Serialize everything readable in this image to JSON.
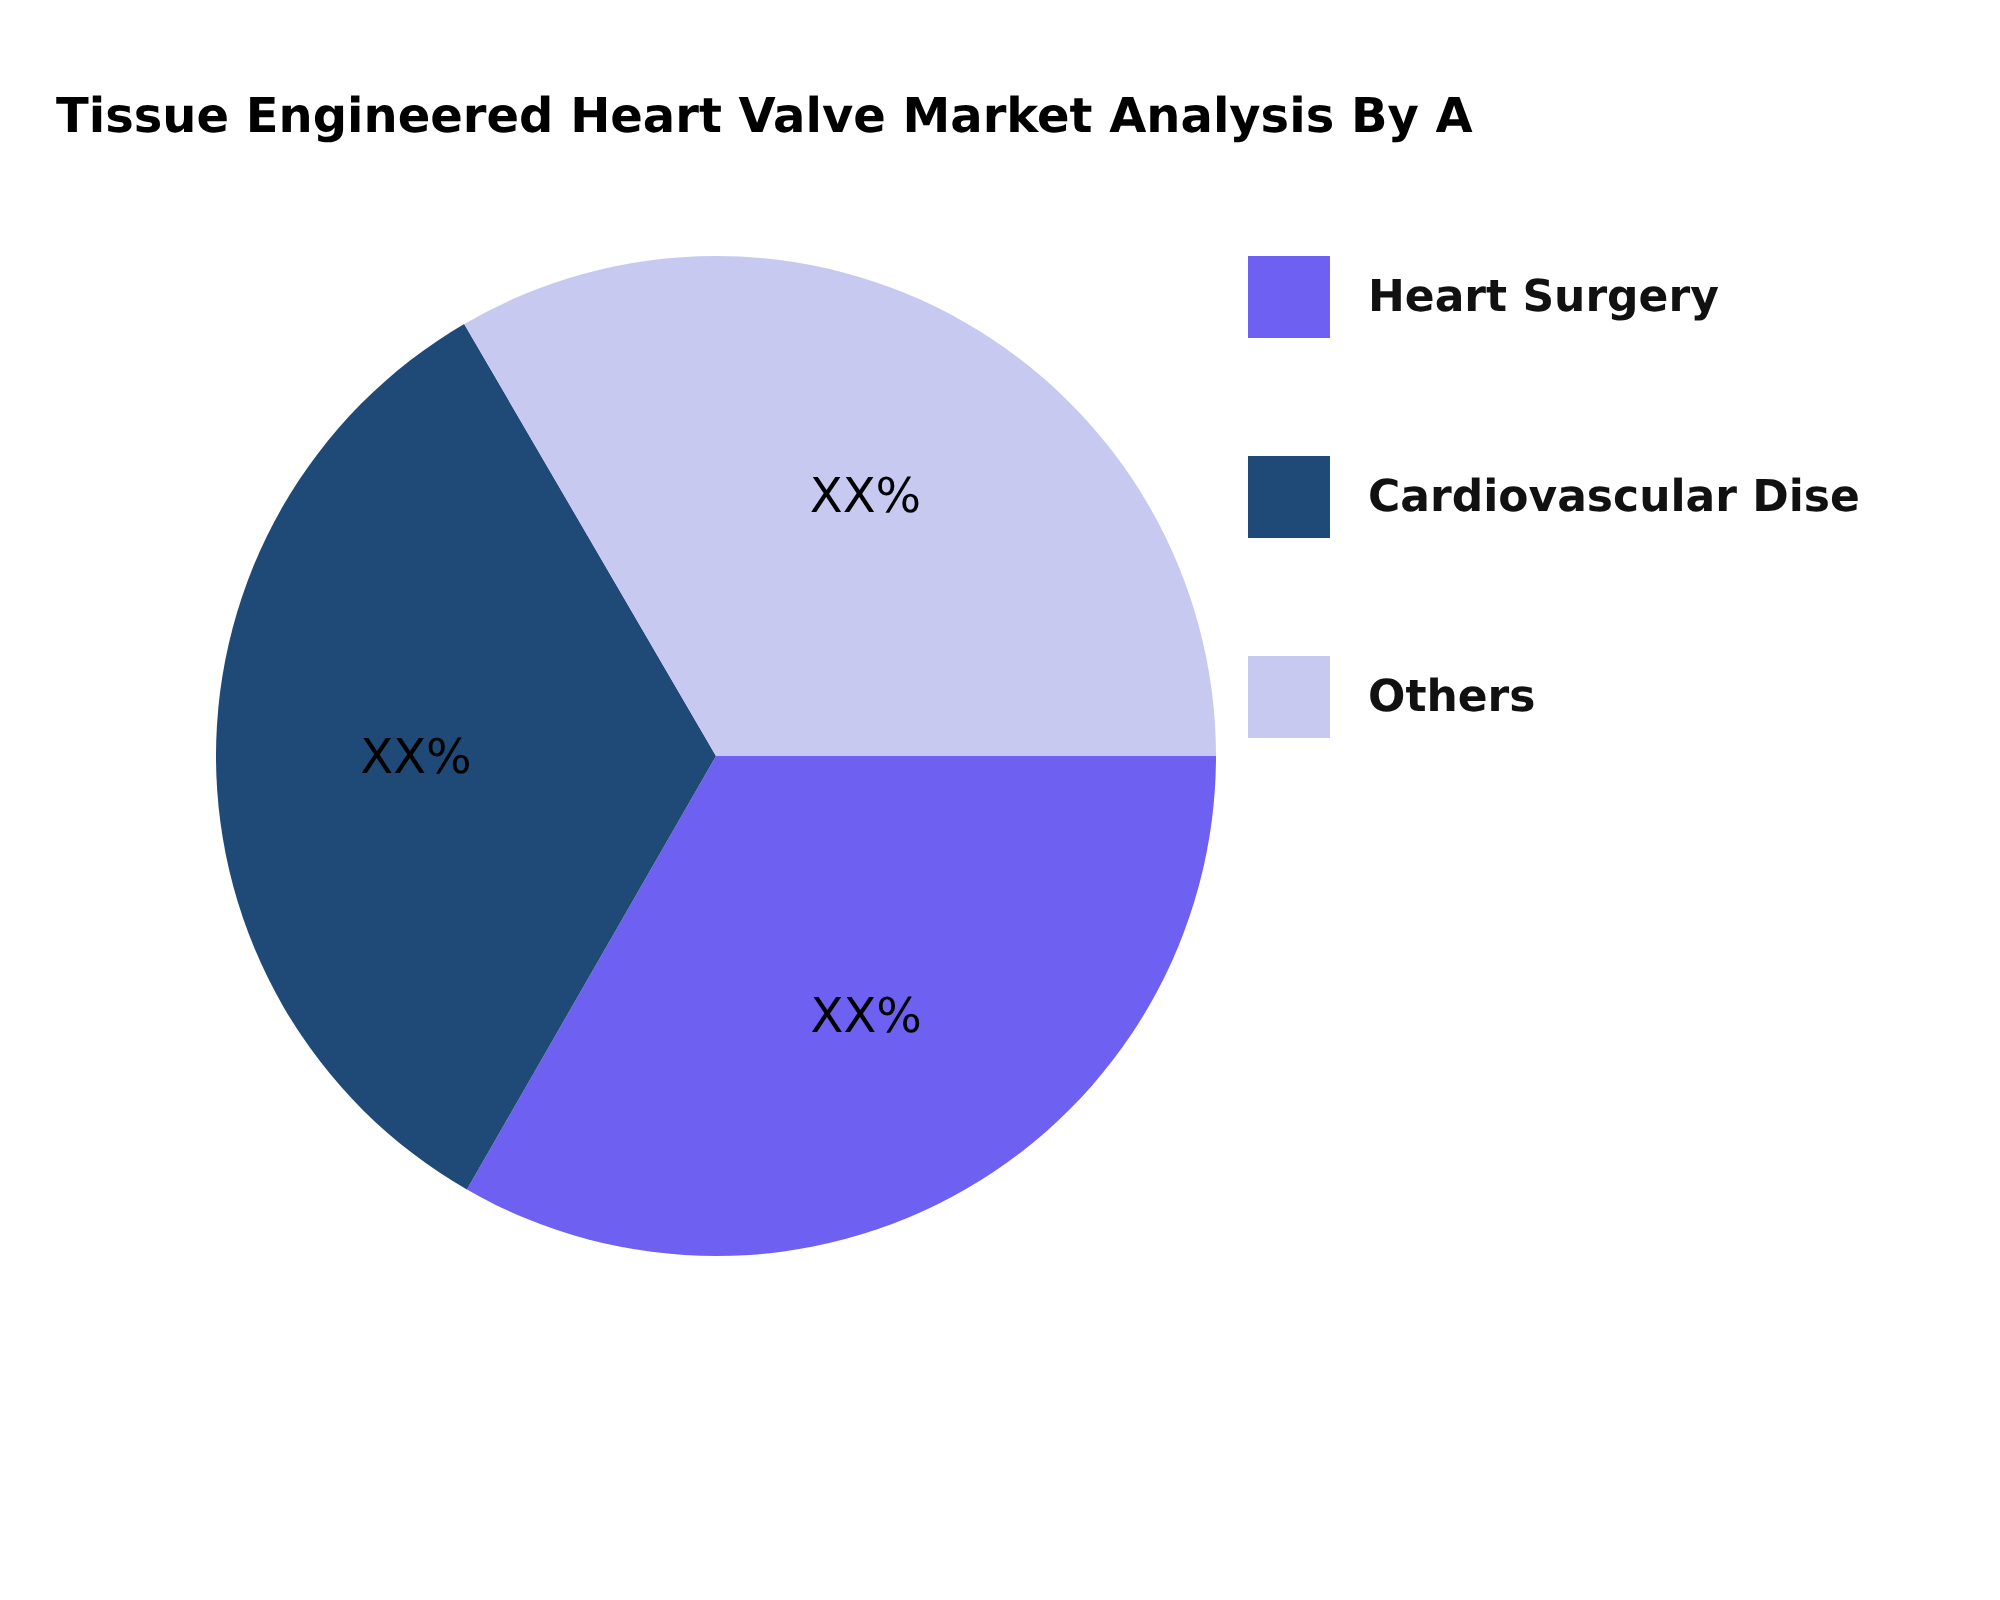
{
  "chart_data": {
    "type": "pie",
    "title": "Tissue Engineered Heart Valve Market Analysis By A",
    "categories": [
      "Heart Surgery",
      "Cardiovascular Dise",
      "Others"
    ],
    "values": [
      33.3,
      33.3,
      33.4
    ],
    "colors": [
      "#6e61f2",
      "#1f4a78",
      "#c8c9f1"
    ],
    "value_labels": [
      "XX%",
      "XX%",
      "XX%"
    ],
    "legend": "right"
  }
}
